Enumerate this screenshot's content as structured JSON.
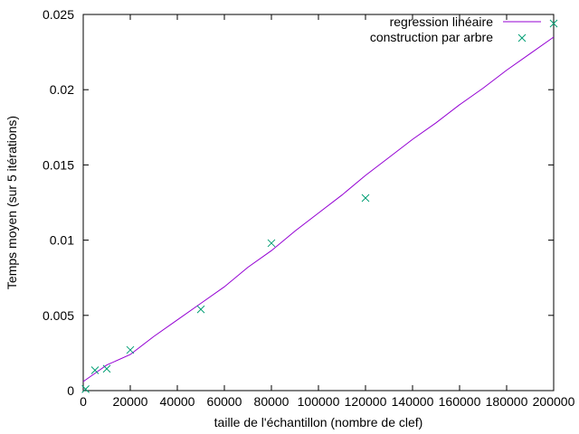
{
  "chart_data": {
    "type": "scatter",
    "title": "",
    "xlabel": "taille de l'échantillon (nombre de clef)",
    "ylabel": "Temps moyen (sur 5 itérations)",
    "xlim": [
      0,
      200000
    ],
    "ylim": [
      0,
      0.025
    ],
    "x_ticks": [
      0,
      20000,
      40000,
      60000,
      80000,
      100000,
      120000,
      140000,
      160000,
      180000,
      200000
    ],
    "x_tick_labels": [
      "0",
      "20000",
      "40000",
      "60000",
      "80000",
      "100000",
      "120000",
      "140000",
      "160000",
      "180000",
      "200000"
    ],
    "y_ticks": [
      0,
      0.005,
      0.01,
      0.015,
      0.02,
      0.025
    ],
    "y_tick_labels": [
      "0",
      "0.005",
      "0.01",
      "0.015",
      "0.02",
      "0.025"
    ],
    "grid": false,
    "legend_position": "top-right",
    "series": [
      {
        "name": "regression linéaire",
        "kind": "line",
        "color": "#9400d3",
        "x": [
          0,
          5000,
          10000,
          20000,
          30000,
          40000,
          50000,
          60000,
          70000,
          80000,
          90000,
          100000,
          110000,
          120000,
          130000,
          140000,
          150000,
          160000,
          170000,
          180000,
          190000,
          200000
        ],
        "y": [
          0.0006,
          0.00115,
          0.0017,
          0.0024,
          0.0036,
          0.0047,
          0.0058,
          0.0069,
          0.0082,
          0.0093,
          0.0106,
          0.0118,
          0.013,
          0.0143,
          0.0155,
          0.0167,
          0.0178,
          0.019,
          0.0201,
          0.0213,
          0.0224,
          0.0235
        ]
      },
      {
        "name": "construction par arbre",
        "kind": "scatter",
        "marker": "x",
        "color": "#009e73",
        "x": [
          1000,
          5000,
          10000,
          20000,
          50000,
          80000,
          120000,
          200000
        ],
        "y": [
          0.0001,
          0.00135,
          0.00145,
          0.0027,
          0.0054,
          0.0098,
          0.0128,
          0.0244
        ]
      }
    ]
  }
}
